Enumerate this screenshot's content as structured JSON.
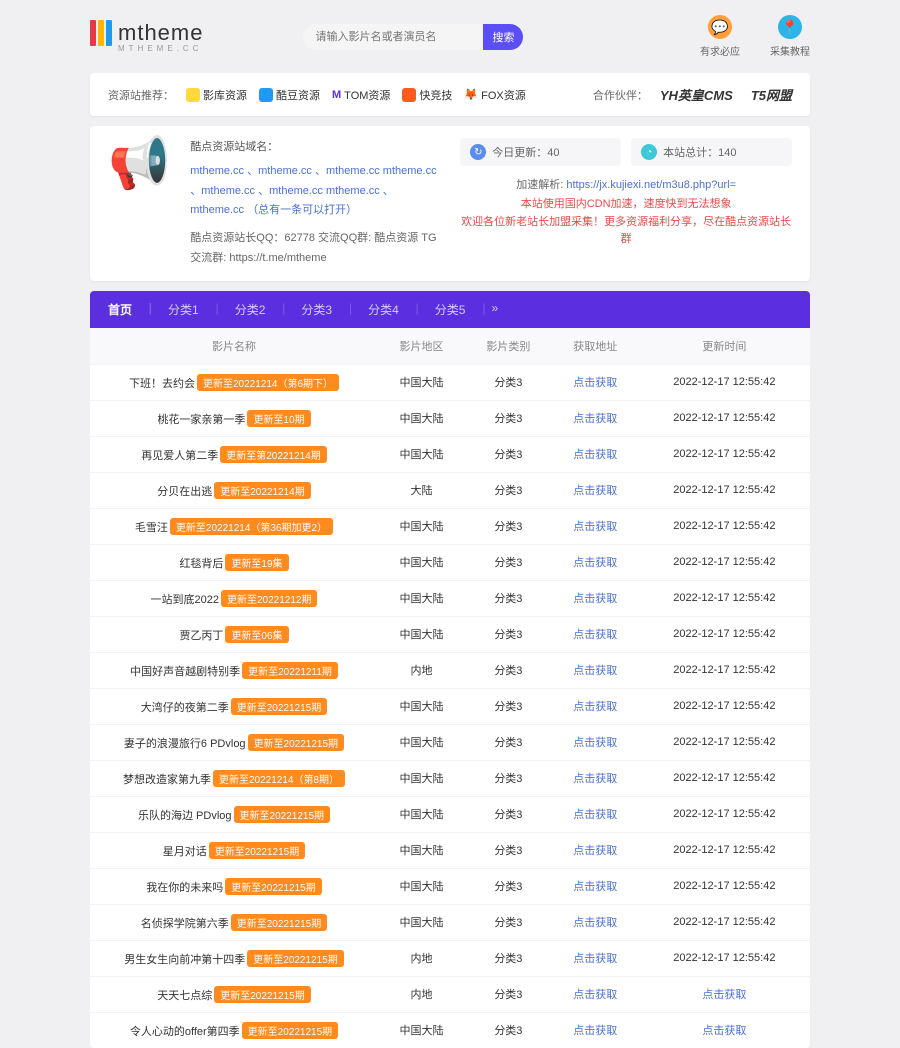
{
  "logo": {
    "bars": [
      "#e63946",
      "#ffb703",
      "#1d9bf0"
    ],
    "text": "mtheme",
    "sub": "MTHEME.CC"
  },
  "search": {
    "placeholder": "请输入影片名或者演员名",
    "btn": "搜索"
  },
  "header_icons": [
    {
      "icon": "💬",
      "bg": "#ff9f3a",
      "label": "有求必应"
    },
    {
      "icon": "📍",
      "bg": "#2bb5e8",
      "label": "采集教程"
    }
  ],
  "recommend": {
    "label": "资源站推荐：",
    "items": [
      {
        "icon_bg": "#ffd93d",
        "name": "影库资源"
      },
      {
        "icon_bg": "#1d9bf0",
        "name": "酷豆资源"
      },
      {
        "icon_bg": "#5b2ee0",
        "name": "TOM资源",
        "prefix": "M",
        "prefix_color": "#5b2ee0"
      },
      {
        "icon_bg": "#ff5a1f",
        "name": "快竞技"
      },
      {
        "icon_bg": "#ff8a1e",
        "name": "FOX资源",
        "prefix": "🦊"
      }
    ],
    "partner_label": "合作伙伴：",
    "partners": [
      "YH英皇CMS",
      "T5网盟"
    ]
  },
  "info": {
    "title": "酷点资源站域名：",
    "domains": "mtheme.cc 、mtheme.cc 、mtheme.cc mtheme.cc 、mtheme.cc 、mtheme.cc mtheme.cc 、mtheme.cc （总有一条可以打开）",
    "qq_line": "酷点资源站长QQ：62778 交流QQ群: 酷点资源 TG 交流群: https://t.me/mtheme",
    "stats": [
      {
        "icon_bg": "#5b8def",
        "icon": "↻",
        "label": "今日更新：",
        "value": "40"
      },
      {
        "icon_bg": "#3dc8d8",
        "icon": "◔",
        "label": "本站总计：",
        "value": "140"
      }
    ],
    "speed_label": "加速解析: ",
    "speed_link": "https://jx.kujiexi.net/m3u8.php?url=",
    "red_lines": [
      "本站使用国内CDN加速，速度快到无法想象",
      "欢迎各位新老站长加盟采集！更多资源福利分享，尽在酷点资源站长群"
    ]
  },
  "tabs": [
    "首页",
    "分类1",
    "分类2",
    "分类3",
    "分类4",
    "分类5"
  ],
  "tabs_active": 0,
  "tabs_more": "»",
  "columns": [
    "影片名称",
    "影片地区",
    "影片类别",
    "获取地址",
    "更新时间"
  ],
  "get_label": "点击获取",
  "rows": [
    {
      "title": "下班！去约会",
      "badge": "更新至20221214（第6期下）",
      "region": "中国大陆",
      "cat": "分类3",
      "time": "2022-12-17 12:55:42"
    },
    {
      "title": "桃花一家亲第一季",
      "badge": "更新至10期",
      "region": "中国大陆",
      "cat": "分类3",
      "time": "2022-12-17 12:55:42"
    },
    {
      "title": "再见爱人第二季",
      "badge": "更新至第20221214期",
      "region": "中国大陆",
      "cat": "分类3",
      "time": "2022-12-17 12:55:42"
    },
    {
      "title": "分贝在出逃",
      "badge": "更新至20221214期",
      "region": "大陆",
      "cat": "分类3",
      "time": "2022-12-17 12:55:42"
    },
    {
      "title": "毛雪汪",
      "badge": "更新至20221214（第36期加更2）",
      "region": "中国大陆",
      "cat": "分类3",
      "time": "2022-12-17 12:55:42"
    },
    {
      "title": "红毯背后",
      "badge": "更新至19集",
      "region": "中国大陆",
      "cat": "分类3",
      "time": "2022-12-17 12:55:42"
    },
    {
      "title": "一站到底2022",
      "badge": "更新至20221212期",
      "region": "中国大陆",
      "cat": "分类3",
      "time": "2022-12-17 12:55:42"
    },
    {
      "title": "贾乙丙丁",
      "badge": "更新至06集",
      "region": "中国大陆",
      "cat": "分类3",
      "time": "2022-12-17 12:55:42"
    },
    {
      "title": "中国好声音越剧特别季",
      "badge": "更新至20221211期",
      "region": "内地",
      "cat": "分类3",
      "time": "2022-12-17 12:55:42"
    },
    {
      "title": "大湾仔的夜第二季",
      "badge": "更新至20221215期",
      "region": "中国大陆",
      "cat": "分类3",
      "time": "2022-12-17 12:55:42"
    },
    {
      "title": "妻子的浪漫旅行6 PDvlog",
      "badge": "更新至20221215期",
      "region": "中国大陆",
      "cat": "分类3",
      "time": "2022-12-17 12:55:42"
    },
    {
      "title": "梦想改造家第九季",
      "badge": "更新至20221214（第8期）",
      "region": "中国大陆",
      "cat": "分类3",
      "time": "2022-12-17 12:55:42"
    },
    {
      "title": "乐队的海边 PDvlog",
      "badge": "更新至20221215期",
      "region": "中国大陆",
      "cat": "分类3",
      "time": "2022-12-17 12:55:42"
    },
    {
      "title": "星月对话",
      "badge": "更新至20221215期",
      "region": "中国大陆",
      "cat": "分类3",
      "time": "2022-12-17 12:55:42"
    },
    {
      "title": "我在你的未来吗",
      "badge": "更新至20221215期",
      "region": "中国大陆",
      "cat": "分类3",
      "time": "2022-12-17 12:55:42"
    },
    {
      "title": "名侦探学院第六季",
      "badge": "更新至20221215期",
      "region": "中国大陆",
      "cat": "分类3",
      "time": "2022-12-17 12:55:42"
    },
    {
      "title": "男生女生向前冲第十四季",
      "badge": "更新至20221215期",
      "region": "内地",
      "cat": "分类3",
      "time": "2022-12-17 12:55:42"
    },
    {
      "title": "天天七点综",
      "badge": "更新至20221215期",
      "region": "内地",
      "cat": "分类3",
      "time": "点击获取",
      "time_is_link": true
    },
    {
      "title": "令人心动的offer第四季",
      "badge": "更新至20221215期",
      "region": "中国大陆",
      "cat": "分类3",
      "time": "点击获取",
      "time_is_link": true
    }
  ]
}
